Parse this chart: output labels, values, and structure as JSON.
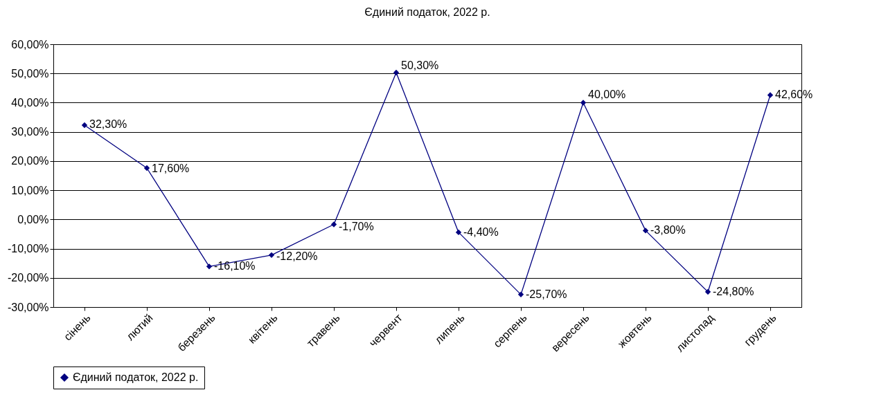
{
  "chart_data": {
    "type": "line",
    "title": "Єдиний податок, 2022 р.",
    "categories": [
      "сінень",
      "лютий",
      "березень",
      "квітень",
      "травень",
      "червент",
      "липень",
      "серпень",
      "вересень",
      "жовтень",
      "листопад",
      "грудень"
    ],
    "series": [
      {
        "name": "Єдиний податок, 2022 р.",
        "color": "#000080",
        "values": [
          32.3,
          17.6,
          -16.1,
          -12.2,
          -1.7,
          50.3,
          -4.4,
          -25.7,
          40.0,
          -3.8,
          -24.8,
          42.6
        ],
        "value_labels": [
          "32,30%",
          "17,60%",
          "-16,10%",
          "-12,20%",
          "-1,70%",
          "50,30%",
          "-4,40%",
          "-25,70%",
          "40,00%",
          "-3,80%",
          "-24,80%",
          "42,60%"
        ]
      }
    ],
    "ylim": [
      -30,
      60
    ],
    "yticks": [
      {
        "value": -30,
        "label": "-30,00%"
      },
      {
        "value": -20,
        "label": "-20,00%"
      },
      {
        "value": -10,
        "label": "-10,00%"
      },
      {
        "value": 0,
        "label": "0,00%"
      },
      {
        "value": 10,
        "label": "10,00%"
      },
      {
        "value": 20,
        "label": "20,00%"
      },
      {
        "value": 30,
        "label": "30,00%"
      },
      {
        "value": 40,
        "label": "40,00%"
      },
      {
        "value": 50,
        "label": "50,00%"
      },
      {
        "value": 60,
        "label": "60,00%"
      }
    ],
    "grid": "y",
    "legend": "bottom",
    "marker": "diamond",
    "line_style": "solid"
  }
}
